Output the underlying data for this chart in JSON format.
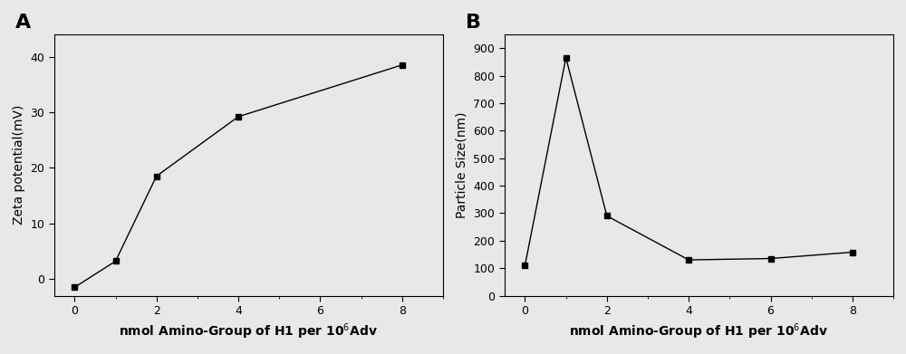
{
  "panel_A": {
    "label": "A",
    "x": [
      0,
      1,
      2,
      4,
      8
    ],
    "y": [
      -1.5,
      3.2,
      18.5,
      29.2,
      38.5
    ],
    "xlabel": "nmol Amino-Group of H1 per 10$^6$Adv",
    "ylabel": "Zeta potential(mV)",
    "xlim": [
      -0.5,
      9.0
    ],
    "ylim": [
      -3,
      44
    ],
    "yticks": [
      0,
      10,
      20,
      30,
      40
    ],
    "xticks": [
      0,
      2,
      4,
      6,
      8
    ]
  },
  "panel_B": {
    "label": "B",
    "x": [
      0,
      1,
      2,
      4,
      6,
      8
    ],
    "y": [
      110,
      865,
      290,
      130,
      135,
      158
    ],
    "xlabel": "nmol Amino-Group of H1 per 10$^6$Adv",
    "ylabel": "Particle Size(nm)",
    "xlim": [
      -0.5,
      9.0
    ],
    "ylim": [
      0,
      950
    ],
    "yticks": [
      0,
      100,
      200,
      300,
      400,
      500,
      600,
      700,
      800,
      900
    ],
    "xticks": [
      0,
      2,
      4,
      6,
      8
    ]
  },
  "line_color": "#000000",
  "marker": "s",
  "marker_size": 4,
  "marker_color": "#000000",
  "line_width": 1.0,
  "label_fontsize": 10,
  "tick_fontsize": 9,
  "panel_label_fontsize": 16,
  "bg_color": "#e8e8e8"
}
